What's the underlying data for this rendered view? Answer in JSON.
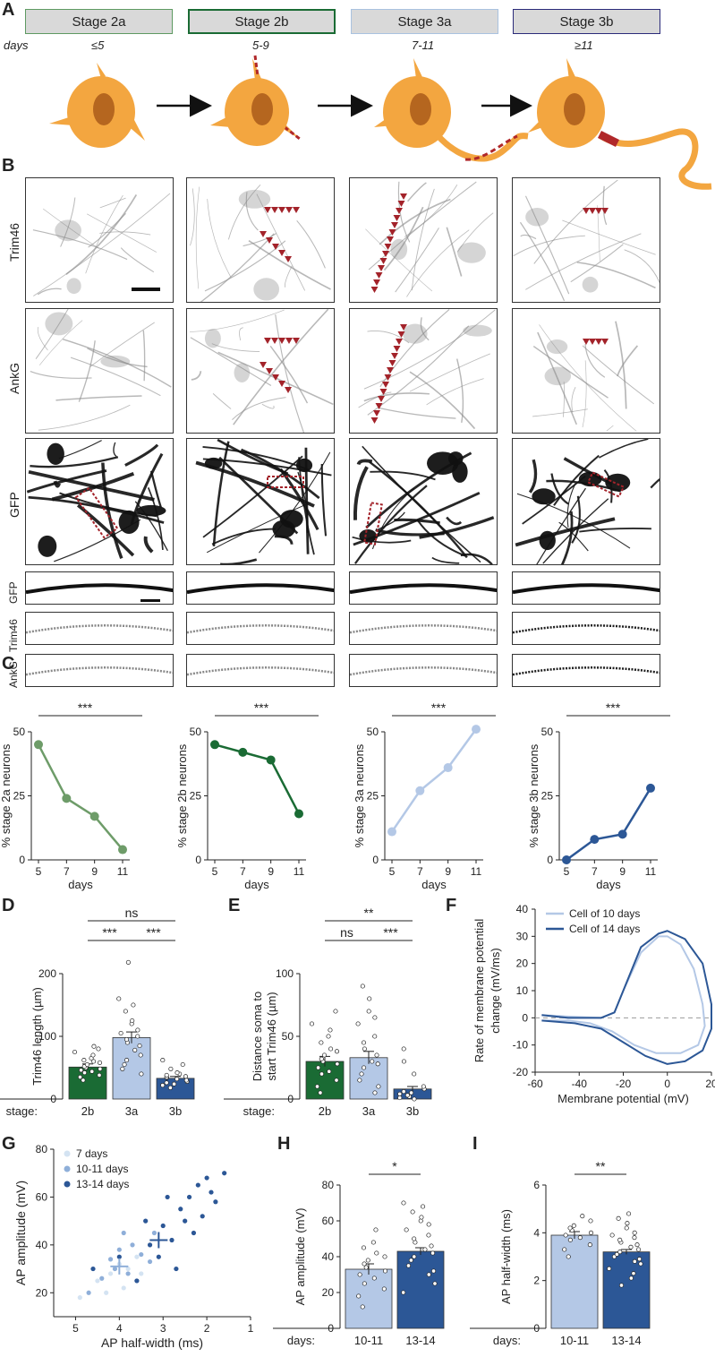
{
  "panels": {
    "A": "A",
    "B": "B",
    "C": "C",
    "D": "D",
    "E": "E",
    "F": "F",
    "G": "G",
    "H": "H",
    "I": "I"
  },
  "panel_a": {
    "days_label": "days",
    "stages": [
      {
        "label": "Stage 2a",
        "days": "≤5",
        "border": "#5e9a62"
      },
      {
        "label": "Stage 2b",
        "days": "5-9",
        "border": "#1a6b34"
      },
      {
        "label": "Stage 3a",
        "days": "7-11",
        "border": "#a9c2e0"
      },
      {
        "label": "Stage 3b",
        "days": "≥11",
        "border": "#2b2b7a"
      }
    ]
  },
  "panel_b": {
    "rows": [
      "Trim46",
      "AnkG",
      "GFP",
      "GFP",
      "Trim46",
      "AnkG"
    ]
  },
  "panel_c": {
    "significance": "***",
    "xlabel": "days"
  },
  "panel_d": {
    "ylabel": "Trim46 length (µm)",
    "stage_label": "stage:",
    "sig": [
      "ns",
      "***",
      "***"
    ]
  },
  "panel_e": {
    "ylabel": "Distance soma to start Trim46 (µm)",
    "stage_label": "stage:",
    "sig": [
      "**",
      "ns",
      "***"
    ]
  },
  "panel_f": {
    "ylabel": "Rate of membrane potential change (mV/ms)",
    "xlabel": "Membrane potential (mV)",
    "legend": [
      "Cell of 10 days",
      "Cell of 14 days"
    ]
  },
  "panel_g": {
    "ylabel": "AP amplitude (mV)",
    "xlabel": "AP half-width (ms)",
    "legend": [
      "7 days",
      "10-11 days",
      "13-14 days"
    ]
  },
  "panel_h": {
    "ylabel": "AP amplitude (mV)",
    "days_label": "days:",
    "sig": "*"
  },
  "panel_i": {
    "ylabel": "AP half-width (ms)",
    "days_label": "days:",
    "sig": "**"
  },
  "colors": {
    "s2a": "#6e9c69",
    "s2b": "#1a6b34",
    "s3a": "#b4c8e6",
    "s3b": "#2c5796",
    "s7": "#d4e3f2",
    "axon": "#b0282a",
    "soma": "#f3a640"
  },
  "chart_data": [
    {
      "type": "line",
      "ylabel": "% stage 2a neurons",
      "xlabel": "days",
      "x": [
        5,
        7,
        9,
        11
      ],
      "values": [
        45,
        24,
        17,
        4
      ],
      "ylim": [
        0,
        50
      ],
      "color": "#6e9c69"
    },
    {
      "type": "line",
      "ylabel": "% stage 2b neurons",
      "xlabel": "days",
      "x": [
        5,
        7,
        9,
        11
      ],
      "values": [
        45,
        42,
        39,
        18
      ],
      "ylim": [
        0,
        50
      ],
      "color": "#1a6b34"
    },
    {
      "type": "line",
      "ylabel": "% stage 3a neurons",
      "xlabel": "days",
      "x": [
        5,
        7,
        9,
        11
      ],
      "values": [
        11,
        27,
        36,
        51
      ],
      "ylim": [
        0,
        50
      ],
      "color": "#b4c8e6"
    },
    {
      "type": "line",
      "ylabel": "% stage 3b neurons",
      "xlabel": "days",
      "x": [
        5,
        7,
        9,
        11
      ],
      "values": [
        0,
        8,
        10,
        28
      ],
      "ylim": [
        0,
        50
      ],
      "color": "#2c5796"
    },
    {
      "type": "bar",
      "ylabel": "Trim46 length (µm)",
      "categories": [
        "2b",
        "3a",
        "3b"
      ],
      "values": [
        51,
        98,
        33
      ],
      "errors": [
        5,
        9,
        3
      ],
      "ylim": [
        0,
        200
      ],
      "points": [
        [
          30,
          35,
          38,
          42,
          44,
          46,
          48,
          50,
          52,
          55,
          58,
          60,
          62,
          65,
          70,
          75,
          80,
          84
        ],
        [
          40,
          48,
          55,
          62,
          70,
          78,
          85,
          90,
          95,
          100,
          105,
          110,
          120,
          125,
          140,
          150,
          160,
          218
        ],
        [
          18,
          22,
          24,
          26,
          28,
          30,
          32,
          34,
          35,
          36,
          38,
          40,
          42,
          48,
          55,
          62
        ]
      ],
      "colors": [
        "#1a6b34",
        "#b4c8e6",
        "#2c5796"
      ]
    },
    {
      "type": "bar",
      "ylabel": "Distance soma to start Trim46 (µm)",
      "categories": [
        "2b",
        "3a",
        "3b"
      ],
      "values": [
        30,
        33,
        8
      ],
      "errors": [
        4,
        5,
        2
      ],
      "ylim": [
        0,
        100
      ],
      "points": [
        [
          5,
          10,
          15,
          20,
          22,
          25,
          28,
          30,
          32,
          35,
          38,
          40,
          45,
          50,
          55,
          60,
          70
        ],
        [
          5,
          10,
          15,
          20,
          25,
          28,
          30,
          35,
          40,
          45,
          50,
          60,
          65,
          70,
          80,
          90
        ],
        [
          0,
          1,
          2,
          3,
          4,
          5,
          6,
          8,
          10,
          20,
          30,
          40
        ]
      ],
      "colors": [
        "#1a6b34",
        "#b4c8e6",
        "#2c5796"
      ]
    },
    {
      "type": "line",
      "ylabel": "Rate of membrane potential change (mV/ms)",
      "xlabel": "Membrane potential (mV)",
      "xlim": [
        -60,
        20
      ],
      "ylim": [
        -20,
        40
      ],
      "series": [
        {
          "name": "Cell of 10 days",
          "color": "#b4c8e6"
        },
        {
          "name": "Cell of 14 days",
          "color": "#2c5796"
        }
      ]
    },
    {
      "type": "scatter",
      "ylabel": "AP amplitude (mV)",
      "xlabel": "AP half-width (ms)",
      "xlim": [
        5.5,
        1
      ],
      "ylim": [
        10,
        80
      ],
      "series": [
        {
          "name": "7 days",
          "color": "#d4e3f2",
          "points": [
            [
              4.9,
              18
            ],
            [
              4.5,
              25
            ],
            [
              4.2,
              28
            ],
            [
              4.0,
              32
            ],
            [
              3.8,
              30
            ],
            [
              3.6,
              35
            ],
            [
              4.3,
              20
            ],
            [
              3.9,
              22
            ],
            [
              4.6,
              30
            ],
            [
              3.5,
              28
            ]
          ]
        },
        {
          "name": "10-11 days",
          "color": "#8fafd9",
          "points": [
            [
              4.7,
              20
            ],
            [
              4.4,
              26
            ],
            [
              4.1,
              30
            ],
            [
              3.9,
              45
            ],
            [
              3.7,
              40
            ],
            [
              3.5,
              36
            ],
            [
              3.3,
              33
            ],
            [
              4.0,
              38
            ],
            [
              3.8,
              28
            ],
            [
              4.2,
              34
            ],
            [
              3.6,
              25
            ],
            [
              3.2,
              45
            ]
          ]
        },
        {
          "name": "13-14 days",
          "color": "#2c5796",
          "points": [
            [
              4.6,
              30
            ],
            [
              4.0,
              35
            ],
            [
              3.6,
              25
            ],
            [
              3.3,
              40
            ],
            [
              3.0,
              48
            ],
            [
              2.8,
              42
            ],
            [
              2.6,
              55
            ],
            [
              2.4,
              60
            ],
            [
              2.2,
              65
            ],
            [
              2.0,
              68
            ],
            [
              1.8,
              58
            ],
            [
              1.6,
              70
            ],
            [
              2.5,
              50
            ],
            [
              3.1,
              35
            ],
            [
              2.9,
              60
            ],
            [
              2.3,
              45
            ],
            [
              3.4,
              50
            ],
            [
              2.7,
              30
            ],
            [
              2.1,
              52
            ],
            [
              1.9,
              62
            ]
          ]
        }
      ],
      "means": [
        {
          "x": 4.0,
          "y": 31,
          "color": "#8fafd9"
        },
        {
          "x": 3.1,
          "y": 42,
          "color": "#2c5796"
        }
      ]
    },
    {
      "type": "bar",
      "ylabel": "AP amplitude (mV)",
      "categories": [
        "10-11",
        "13-14"
      ],
      "values": [
        33,
        43
      ],
      "errors": [
        3,
        2
      ],
      "ylim": [
        0,
        80
      ],
      "points": [
        [
          12,
          18,
          22,
          25,
          28,
          30,
          32,
          34,
          36,
          38,
          40,
          42,
          45,
          48,
          55
        ],
        [
          20,
          25,
          30,
          32,
          35,
          38,
          40,
          42,
          44,
          46,
          48,
          50,
          52,
          55,
          58,
          60,
          62,
          65,
          68,
          70
        ]
      ],
      "colors": [
        "#b4c8e6",
        "#2c5796"
      ]
    },
    {
      "type": "bar",
      "ylabel": "AP half-width (ms)",
      "categories": [
        "10-11",
        "13-14"
      ],
      "values": [
        3.9,
        3.2
      ],
      "errors": [
        0.15,
        0.1
      ],
      "ylim": [
        0,
        6
      ],
      "points": [
        [
          3.0,
          3.3,
          3.5,
          3.7,
          3.8,
          3.9,
          4.0,
          4.1,
          4.2,
          4.3,
          4.5,
          4.7
        ],
        [
          1.8,
          2.1,
          2.3,
          2.5,
          2.7,
          2.8,
          2.9,
          3.0,
          3.1,
          3.2,
          3.3,
          3.4,
          3.5,
          3.6,
          3.7,
          3.8,
          3.9,
          4.0,
          4.2,
          4.4,
          4.6,
          4.8
        ]
      ],
      "colors": [
        "#b4c8e6",
        "#2c5796"
      ]
    }
  ]
}
